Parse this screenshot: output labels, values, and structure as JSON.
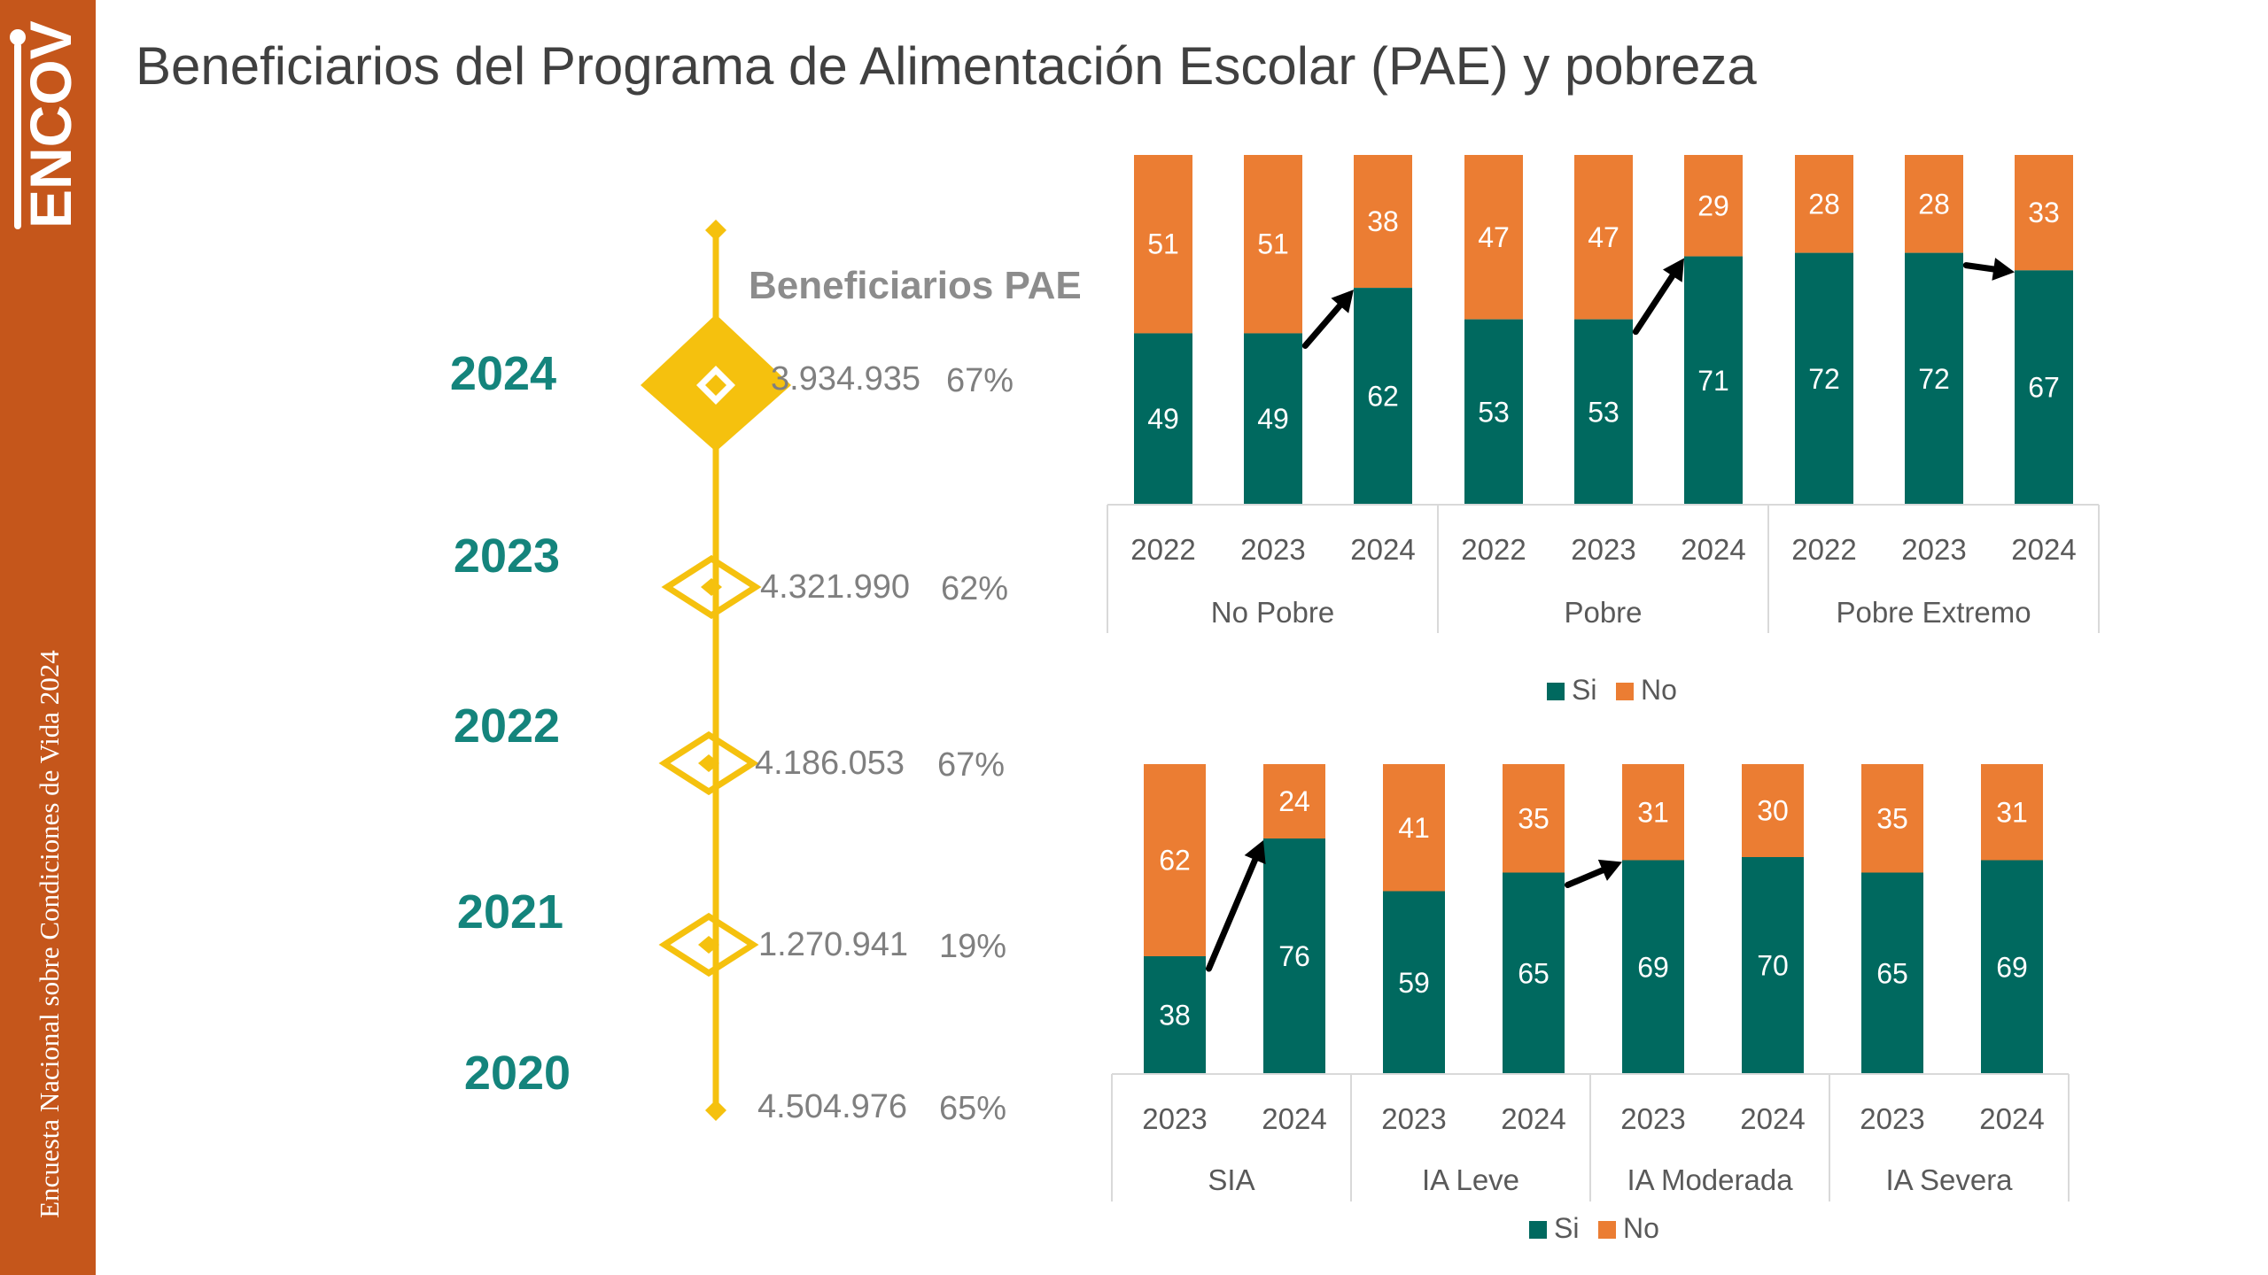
{
  "sidebar": {
    "logo_text": "ENCOVI",
    "vertical_text": "Encuesta Nacional sobre Condiciones de Vida 2024"
  },
  "page": {
    "title": "Beneficiarios del Programa de Alimentación Escolar (PAE) y pobreza"
  },
  "timeline": {
    "header": "Beneficiarios PAE",
    "entries": [
      {
        "year": "2024",
        "count": "3.934.935",
        "pct": "67%"
      },
      {
        "year": "2023",
        "count": "4.321.990",
        "pct": "62%"
      },
      {
        "year": "2022",
        "count": "4.186.053",
        "pct": "67%"
      },
      {
        "year": "2021",
        "count": "1.270.941",
        "pct": "19%"
      },
      {
        "year": "2020",
        "count": "4.504.976",
        "pct": "65%"
      }
    ]
  },
  "colors": {
    "si": "#00695F",
    "no": "#EB7D33",
    "accent": "#F5C10E",
    "year_text": "#14847C",
    "sidebar": "#C5561B"
  },
  "chart_data": [
    {
      "type": "bar",
      "stacked": "100%",
      "groups": [
        {
          "name": "No Pobre",
          "years": [
            "2022",
            "2023",
            "2024"
          ]
        },
        {
          "name": "Pobre",
          "years": [
            "2022",
            "2023",
            "2024"
          ]
        },
        {
          "name": "Pobre Extremo",
          "years": [
            "2022",
            "2023",
            "2024"
          ]
        }
      ],
      "series": [
        {
          "name": "Si",
          "color": "#00695F",
          "values": [
            49,
            49,
            62,
            53,
            53,
            71,
            72,
            72,
            67
          ]
        },
        {
          "name": "No",
          "color": "#EB7D33",
          "values": [
            51,
            51,
            38,
            47,
            47,
            29,
            28,
            28,
            33
          ]
        }
      ],
      "arrows": [
        [
          1,
          2
        ],
        [
          4,
          5
        ],
        [
          7,
          8
        ]
      ],
      "legend": "bottom"
    },
    {
      "type": "bar",
      "stacked": "100%",
      "groups": [
        {
          "name": "SIA",
          "years": [
            "2023",
            "2024"
          ]
        },
        {
          "name": "IA Leve",
          "years": [
            "2023",
            "2024"
          ]
        },
        {
          "name": "IA Moderada",
          "years": [
            "2023",
            "2024"
          ]
        },
        {
          "name": "IA Severa",
          "years": [
            "2023",
            "2024"
          ]
        }
      ],
      "series": [
        {
          "name": "Si",
          "color": "#00695F",
          "values": [
            38,
            76,
            59,
            65,
            69,
            70,
            65,
            69
          ]
        },
        {
          "name": "No",
          "color": "#EB7D33",
          "values": [
            62,
            24,
            41,
            35,
            31,
            30,
            35,
            31
          ]
        }
      ],
      "arrows": [
        [
          0,
          1
        ],
        [
          3,
          4
        ]
      ],
      "legend": "bottom"
    }
  ]
}
